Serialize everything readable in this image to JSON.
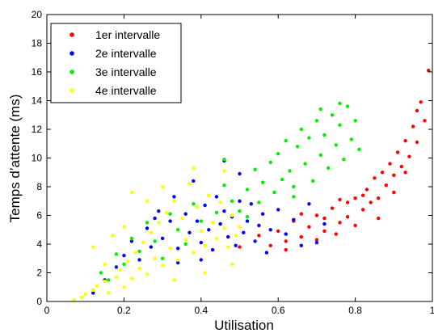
{
  "chart_data": {
    "type": "scatter",
    "title": "",
    "xlabel": "Utilisation",
    "ylabel": "Temps d’attente (ms)",
    "xlim": [
      0,
      1
    ],
    "ylim": [
      0,
      20
    ],
    "x_ticks": [
      "0",
      "0.2",
      "0.4",
      "0.6",
      "0.8",
      "1"
    ],
    "y_ticks": [
      "0",
      "2",
      "4",
      "6",
      "8",
      "10",
      "12",
      "14",
      "16",
      "18",
      "20"
    ],
    "grid": false,
    "legend_position": "top-left",
    "series": [
      {
        "name": "1er intervalle",
        "color": "#ff0000",
        "points": [
          [
            0.5,
            3.8
          ],
          [
            0.55,
            4.6
          ],
          [
            0.58,
            3.9
          ],
          [
            0.6,
            4.9
          ],
          [
            0.62,
            4.2
          ],
          [
            0.64,
            5.6
          ],
          [
            0.66,
            4.5
          ],
          [
            0.68,
            5.2
          ],
          [
            0.7,
            6.0
          ],
          [
            0.7,
            4.3
          ],
          [
            0.72,
            5.8
          ],
          [
            0.74,
            6.5
          ],
          [
            0.75,
            4.7
          ],
          [
            0.76,
            5.5
          ],
          [
            0.78,
            6.9
          ],
          [
            0.78,
            5.9
          ],
          [
            0.8,
            7.2
          ],
          [
            0.8,
            5.3
          ],
          [
            0.82,
            6.4
          ],
          [
            0.83,
            7.8
          ],
          [
            0.84,
            6.9
          ],
          [
            0.85,
            8.6
          ],
          [
            0.86,
            7.2
          ],
          [
            0.87,
            9.0
          ],
          [
            0.88,
            8.1
          ],
          [
            0.89,
            9.6
          ],
          [
            0.9,
            8.8
          ],
          [
            0.91,
            10.4
          ],
          [
            0.92,
            9.4
          ],
          [
            0.93,
            11.2
          ],
          [
            0.94,
            10.1
          ],
          [
            0.95,
            12.2
          ],
          [
            0.96,
            11.1
          ],
          [
            0.97,
            13.9
          ],
          [
            0.96,
            13.3
          ],
          [
            0.98,
            12.6
          ],
          [
            0.86,
            5.8
          ],
          [
            0.82,
            7.4
          ],
          [
            0.76,
            7.1
          ],
          [
            0.72,
            4.9
          ],
          [
            0.66,
            6.1
          ],
          [
            0.62,
            3.6
          ],
          [
            0.9,
            7.6
          ],
          [
            0.93,
            9.0
          ],
          [
            0.99,
            16.1
          ]
        ]
      },
      {
        "name": "2e intervalle",
        "color": "#0000ff",
        "points": [
          [
            0.12,
            0.6
          ],
          [
            0.15,
            1.5
          ],
          [
            0.18,
            2.4
          ],
          [
            0.2,
            3.2
          ],
          [
            0.22,
            4.2
          ],
          [
            0.24,
            2.9
          ],
          [
            0.26,
            5.1
          ],
          [
            0.27,
            3.8
          ],
          [
            0.29,
            6.3
          ],
          [
            0.3,
            4.4
          ],
          [
            0.32,
            5.6
          ],
          [
            0.33,
            7.3
          ],
          [
            0.34,
            3.7
          ],
          [
            0.36,
            6.1
          ],
          [
            0.37,
            4.8
          ],
          [
            0.38,
            8.4
          ],
          [
            0.39,
            5.6
          ],
          [
            0.4,
            4.1
          ],
          [
            0.41,
            6.7
          ],
          [
            0.42,
            5.0
          ],
          [
            0.43,
            3.6
          ],
          [
            0.44,
            7.3
          ],
          [
            0.45,
            5.4
          ],
          [
            0.46,
            6.3
          ],
          [
            0.47,
            4.5
          ],
          [
            0.48,
            5.9
          ],
          [
            0.49,
            3.9
          ],
          [
            0.5,
            7.0
          ],
          [
            0.51,
            4.8
          ],
          [
            0.52,
            5.6
          ],
          [
            0.53,
            6.8
          ],
          [
            0.54,
            4.2
          ],
          [
            0.55,
            5.3
          ],
          [
            0.56,
            6.1
          ],
          [
            0.57,
            3.4
          ],
          [
            0.58,
            5.0
          ],
          [
            0.6,
            6.4
          ],
          [
            0.62,
            4.7
          ],
          [
            0.64,
            5.7
          ],
          [
            0.66,
            3.9
          ],
          [
            0.68,
            6.8
          ],
          [
            0.7,
            4.1
          ],
          [
            0.72,
            5.4
          ],
          [
            0.34,
            2.7
          ],
          [
            0.28,
            5.8
          ],
          [
            0.46,
            9.8
          ],
          [
            0.5,
            8.9
          ],
          [
            0.4,
            2.9
          ]
        ]
      },
      {
        "name": "3e intervalle",
        "color": "#00ee00",
        "points": [
          [
            0.12,
            0.8
          ],
          [
            0.14,
            2.0
          ],
          [
            0.16,
            1.5
          ],
          [
            0.18,
            3.3
          ],
          [
            0.2,
            2.6
          ],
          [
            0.22,
            4.4
          ],
          [
            0.24,
            3.5
          ],
          [
            0.26,
            5.5
          ],
          [
            0.28,
            4.2
          ],
          [
            0.3,
            3.0
          ],
          [
            0.32,
            6.1
          ],
          [
            0.34,
            5.0
          ],
          [
            0.36,
            4.0
          ],
          [
            0.38,
            6.8
          ],
          [
            0.4,
            5.6
          ],
          [
            0.42,
            7.4
          ],
          [
            0.44,
            6.2
          ],
          [
            0.46,
            8.1
          ],
          [
            0.48,
            7.0
          ],
          [
            0.5,
            6.3
          ],
          [
            0.52,
            7.8
          ],
          [
            0.54,
            9.2
          ],
          [
            0.55,
            6.9
          ],
          [
            0.56,
            8.3
          ],
          [
            0.58,
            9.7
          ],
          [
            0.59,
            7.6
          ],
          [
            0.6,
            10.3
          ],
          [
            0.61,
            8.5
          ],
          [
            0.62,
            11.2
          ],
          [
            0.63,
            9.1
          ],
          [
            0.64,
            7.3
          ],
          [
            0.65,
            10.8
          ],
          [
            0.66,
            12.0
          ],
          [
            0.67,
            9.6
          ],
          [
            0.68,
            11.4
          ],
          [
            0.69,
            8.4
          ],
          [
            0.7,
            12.6
          ],
          [
            0.71,
            10.2
          ],
          [
            0.72,
            11.6
          ],
          [
            0.73,
            9.3
          ],
          [
            0.74,
            13.0
          ],
          [
            0.75,
            10.9
          ],
          [
            0.76,
            12.3
          ],
          [
            0.77,
            9.9
          ],
          [
            0.78,
            13.6
          ],
          [
            0.79,
            11.3
          ],
          [
            0.8,
            12.6
          ],
          [
            0.81,
            10.6
          ],
          [
            0.76,
            13.8
          ],
          [
            0.71,
            13.4
          ],
          [
            0.52,
            5.9
          ],
          [
            0.46,
            9.9
          ],
          [
            0.64,
            8.0
          ]
        ]
      },
      {
        "name": "4e intervalle",
        "color": "#ffff00",
        "points": [
          [
            0.07,
            0.1
          ],
          [
            0.09,
            0.3
          ],
          [
            0.1,
            0.5
          ],
          [
            0.12,
            0.8
          ],
          [
            0.13,
            1.1
          ],
          [
            0.15,
            1.4
          ],
          [
            0.16,
            0.6
          ],
          [
            0.18,
            1.7
          ],
          [
            0.19,
            2.2
          ],
          [
            0.2,
            1.0
          ],
          [
            0.21,
            2.8
          ],
          [
            0.22,
            1.6
          ],
          [
            0.23,
            3.4
          ],
          [
            0.24,
            2.3
          ],
          [
            0.25,
            4.1
          ],
          [
            0.26,
            1.9
          ],
          [
            0.27,
            4.8
          ],
          [
            0.28,
            3.0
          ],
          [
            0.29,
            5.5
          ],
          [
            0.3,
            2.5
          ],
          [
            0.31,
            6.2
          ],
          [
            0.32,
            3.7
          ],
          [
            0.33,
            7.0
          ],
          [
            0.34,
            2.9
          ],
          [
            0.35,
            5.8
          ],
          [
            0.36,
            4.3
          ],
          [
            0.37,
            8.2
          ],
          [
            0.38,
            3.4
          ],
          [
            0.39,
            6.6
          ],
          [
            0.4,
            4.9
          ],
          [
            0.41,
            3.9
          ],
          [
            0.42,
            7.4
          ],
          [
            0.43,
            5.5
          ],
          [
            0.44,
            4.4
          ],
          [
            0.45,
            6.9
          ],
          [
            0.46,
            5.1
          ],
          [
            0.47,
            3.8
          ],
          [
            0.48,
            6.0
          ],
          [
            0.49,
            4.6
          ],
          [
            0.5,
            5.2
          ],
          [
            0.12,
            3.8
          ],
          [
            0.17,
            4.6
          ],
          [
            0.22,
            7.6
          ],
          [
            0.26,
            7.0
          ],
          [
            0.3,
            8.0
          ],
          [
            0.38,
            9.3
          ],
          [
            0.46,
            9.1
          ],
          [
            0.15,
            2.6
          ],
          [
            0.2,
            5.2
          ],
          [
            0.33,
            1.5
          ],
          [
            0.41,
            2.0
          ],
          [
            0.48,
            2.6
          ]
        ]
      }
    ]
  }
}
